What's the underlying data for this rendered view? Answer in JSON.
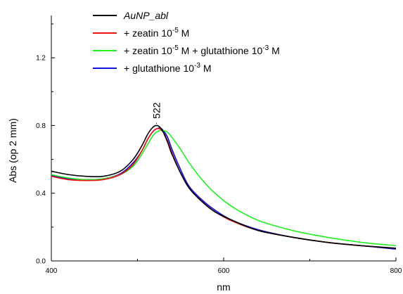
{
  "chart_data": {
    "type": "line",
    "title": "",
    "xlabel": "nm",
    "ylabel": "Abs (op 2 mm)",
    "xlim": [
      400,
      800
    ],
    "ylim": [
      0.0,
      1.45
    ],
    "xticks": [
      "400",
      "600",
      "800"
    ],
    "yticks": [
      "0.0",
      "0.4",
      "0.8",
      "1.2"
    ],
    "xtick_values": [
      400,
      600,
      800
    ],
    "ytick_values": [
      0.0,
      0.4,
      0.8,
      1.2
    ],
    "grid": false,
    "legend_position": "top-left",
    "annotation": {
      "text": "522",
      "x": 522
    },
    "x": [
      400,
      420,
      440,
      460,
      480,
      495,
      505,
      512,
      518,
      522,
      526,
      530,
      535,
      540,
      550,
      560,
      575,
      590,
      610,
      640,
      680,
      720,
      760,
      800
    ],
    "series": [
      {
        "label_main": "AuNP_abl",
        "label_sup": "",
        "label_unit": "",
        "label_main2": "",
        "label_sup2": "",
        "label_unit2": "",
        "italic": true,
        "color": "#000000",
        "values": [
          0.53,
          0.51,
          0.5,
          0.5,
          0.53,
          0.6,
          0.68,
          0.75,
          0.79,
          0.8,
          0.79,
          0.76,
          0.7,
          0.63,
          0.52,
          0.43,
          0.35,
          0.29,
          0.24,
          0.18,
          0.14,
          0.11,
          0.09,
          0.075
        ]
      },
      {
        "label_main": "+ zeatin 10",
        "label_sup": "-5",
        "label_unit": " M",
        "label_main2": "",
        "label_sup2": "",
        "label_unit2": "",
        "italic": false,
        "color": "#ee1111",
        "values": [
          0.5,
          0.48,
          0.475,
          0.48,
          0.51,
          0.57,
          0.65,
          0.72,
          0.765,
          0.78,
          0.78,
          0.76,
          0.71,
          0.64,
          0.52,
          0.43,
          0.35,
          0.29,
          0.235,
          0.18,
          0.14,
          0.11,
          0.09,
          0.075
        ]
      },
      {
        "label_main": "+ zeatin 10",
        "label_sup": "-5",
        "label_unit": " M",
        "label_main2": " + glutathione 10",
        "label_sup2": "-3",
        "label_unit2": " M",
        "italic": false,
        "color": "#22ee22",
        "values": [
          0.51,
          0.49,
          0.48,
          0.485,
          0.51,
          0.56,
          0.63,
          0.69,
          0.74,
          0.76,
          0.77,
          0.77,
          0.76,
          0.73,
          0.66,
          0.58,
          0.48,
          0.4,
          0.32,
          0.24,
          0.18,
          0.14,
          0.11,
          0.09
        ]
      },
      {
        "label_main": "+ glutathione 10",
        "label_sup": "-3",
        "label_unit": " M",
        "label_main2": "",
        "label_sup2": "",
        "label_unit2": "",
        "italic": false,
        "color": "#1111dd",
        "values": [
          0.505,
          0.485,
          0.48,
          0.485,
          0.515,
          0.58,
          0.65,
          0.72,
          0.765,
          0.78,
          0.785,
          0.77,
          0.73,
          0.66,
          0.54,
          0.44,
          0.36,
          0.3,
          0.24,
          0.185,
          0.14,
          0.11,
          0.09,
          0.07
        ]
      }
    ]
  }
}
